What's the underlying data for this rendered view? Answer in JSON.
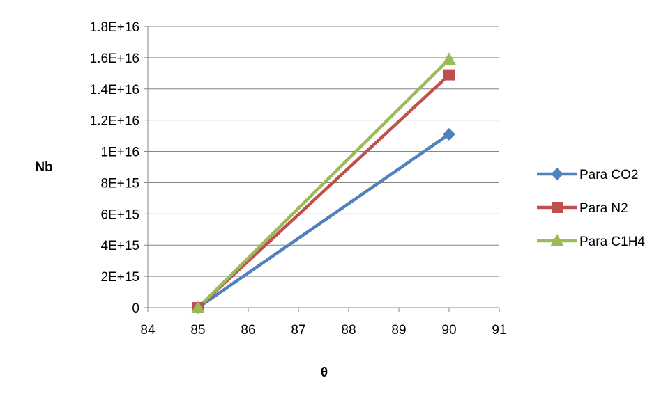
{
  "chart_data": {
    "type": "line",
    "title": "",
    "xlabel": "θ",
    "ylabel": "Nb",
    "xlim": [
      84,
      91
    ],
    "ylim": [
      0,
      1.8e+16
    ],
    "x_ticks": [
      "84",
      "85",
      "86",
      "87",
      "88",
      "89",
      "90",
      "91"
    ],
    "y_ticks": [
      "0",
      "2E+15",
      "4E+15",
      "6E+15",
      "8E+15",
      "1E+16",
      "1.2E+16",
      "1.4E+16",
      "1.6E+16",
      "1.8E+16"
    ],
    "grid": "horizontal",
    "legend_position": "right",
    "series": [
      {
        "name": "Para CO2",
        "color": "#4f81bd",
        "marker": "diamond",
        "x": [
          85,
          90
        ],
        "y": [
          0,
          1.11e+16
        ]
      },
      {
        "name": "Para N2",
        "color": "#c0504d",
        "marker": "square",
        "x": [
          85,
          90
        ],
        "y": [
          0,
          1.49e+16
        ]
      },
      {
        "name": "Para C1H4",
        "color": "#9bbb59",
        "marker": "triangle",
        "x": [
          85,
          90
        ],
        "y": [
          0,
          1.59e+16
        ]
      }
    ]
  }
}
